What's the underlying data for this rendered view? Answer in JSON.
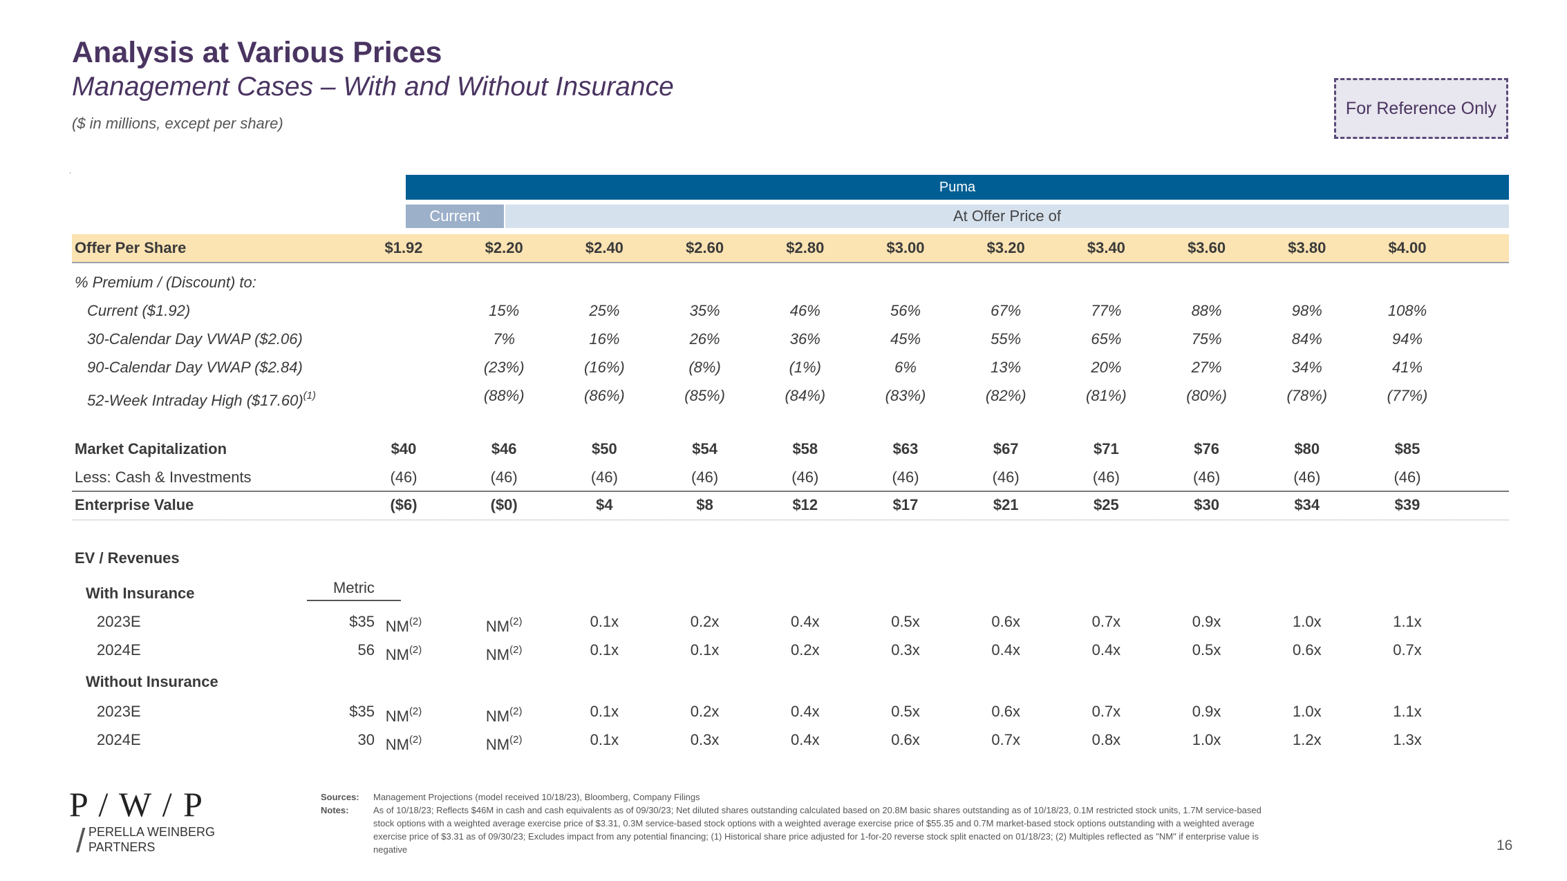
{
  "header": {
    "title": "Analysis at Various Prices",
    "subtitle": "Management Cases – With and Without Insurance",
    "units": "($ in millions, except per share)",
    "dot": ".",
    "reference_badge": "For Reference Only"
  },
  "table": {
    "group_label": "Puma",
    "current_label": "Current",
    "offer_label": "At Offer Price of",
    "offer_row": {
      "label": "Offer Per Share",
      "values": [
        "$1.92",
        "$2.20",
        "$2.40",
        "$2.60",
        "$2.80",
        "$3.00",
        "$3.20",
        "$3.40",
        "$3.60",
        "$3.80",
        "$4.00"
      ]
    },
    "premium_header": "% Premium / (Discount) to:",
    "premium_rows": [
      {
        "label": "Current ($1.92)",
        "values": [
          "",
          "15%",
          "25%",
          "35%",
          "46%",
          "56%",
          "67%",
          "77%",
          "88%",
          "98%",
          "108%"
        ]
      },
      {
        "label": "30-Calendar Day VWAP ($2.06)",
        "values": [
          "",
          "7%",
          "16%",
          "26%",
          "36%",
          "45%",
          "55%",
          "65%",
          "75%",
          "84%",
          "94%"
        ]
      },
      {
        "label": "90-Calendar Day VWAP ($2.84)",
        "values": [
          "",
          "(23%)",
          "(16%)",
          "(8%)",
          "(1%)",
          "6%",
          "13%",
          "20%",
          "27%",
          "34%",
          "41%"
        ]
      },
      {
        "label": "52-Week Intraday High ($17.60)",
        "note": "(1)",
        "values": [
          "",
          "(88%)",
          "(86%)",
          "(85%)",
          "(84%)",
          "(83%)",
          "(82%)",
          "(81%)",
          "(80%)",
          "(78%)",
          "(77%)"
        ]
      }
    ],
    "market_cap": {
      "label": "Market Capitalization",
      "values": [
        "$40",
        "$46",
        "$50",
        "$54",
        "$58",
        "$63",
        "$67",
        "$71",
        "$76",
        "$80",
        "$85"
      ]
    },
    "cash": {
      "label": "Less: Cash & Investments",
      "values": [
        "(46)",
        "(46)",
        "(46)",
        "(46)",
        "(46)",
        "(46)",
        "(46)",
        "(46)",
        "(46)",
        "(46)",
        "(46)"
      ]
    },
    "ev": {
      "label": "Enterprise Value",
      "values": [
        "($6)",
        "($0)",
        "$4",
        "$8",
        "$12",
        "$17",
        "$21",
        "$25",
        "$30",
        "$34",
        "$39"
      ]
    },
    "ev_rev_header": "EV / Revenues",
    "metric_header": "Metric",
    "nm_note": "(2)",
    "with_insurance": {
      "label": "With Insurance",
      "rows": [
        {
          "label": "2023E",
          "metric": "$35",
          "values": [
            "NM",
            "NM",
            "0.1x",
            "0.2x",
            "0.4x",
            "0.5x",
            "0.6x",
            "0.7x",
            "0.9x",
            "1.0x",
            "1.1x"
          ]
        },
        {
          "label": "2024E",
          "metric": "56",
          "values": [
            "NM",
            "NM",
            "0.1x",
            "0.1x",
            "0.2x",
            "0.3x",
            "0.4x",
            "0.4x",
            "0.5x",
            "0.6x",
            "0.7x"
          ]
        }
      ]
    },
    "without_insurance": {
      "label": "Without Insurance",
      "rows": [
        {
          "label": "2023E",
          "metric": "$35",
          "values": [
            "NM",
            "NM",
            "0.1x",
            "0.2x",
            "0.4x",
            "0.5x",
            "0.6x",
            "0.7x",
            "0.9x",
            "1.0x",
            "1.1x"
          ]
        },
        {
          "label": "2024E",
          "metric": "30",
          "values": [
            "NM",
            "NM",
            "0.1x",
            "0.3x",
            "0.4x",
            "0.6x",
            "0.7x",
            "0.8x",
            "1.0x",
            "1.2x",
            "1.3x"
          ]
        }
      ]
    }
  },
  "footer": {
    "logo_mark": "P / W / P",
    "logo_line1": "PERELLA WEINBERG",
    "logo_line2": "PARTNERS",
    "sources_label": "Sources:",
    "sources_text": "Management Projections (model received 10/18/23), Bloomberg, Company Filings",
    "notes_label": "Notes:",
    "notes_text": "As of 10/18/23; Reflects $46M in cash and cash equivalents as of 09/30/23; Net diluted shares outstanding calculated based on 20.8M basic shares outstanding as of 10/18/23, 0.1M restricted stock units, 1.7M service-based stock options with a weighted average exercise price of $3.31, 0.3M service-based stock options with a weighted average exercise price of $55.35 and 0.7M market-based stock options outstanding with a weighted average exercise price of $3.31 as of 09/30/23; Excludes impact from any potential financing; (1) Historical share price adjusted for 1-for-20 reverse stock split enacted on 01/18/23; (2) Multiples reflected as \"NM\" if enterprise value is negative",
    "page_number": "16"
  }
}
